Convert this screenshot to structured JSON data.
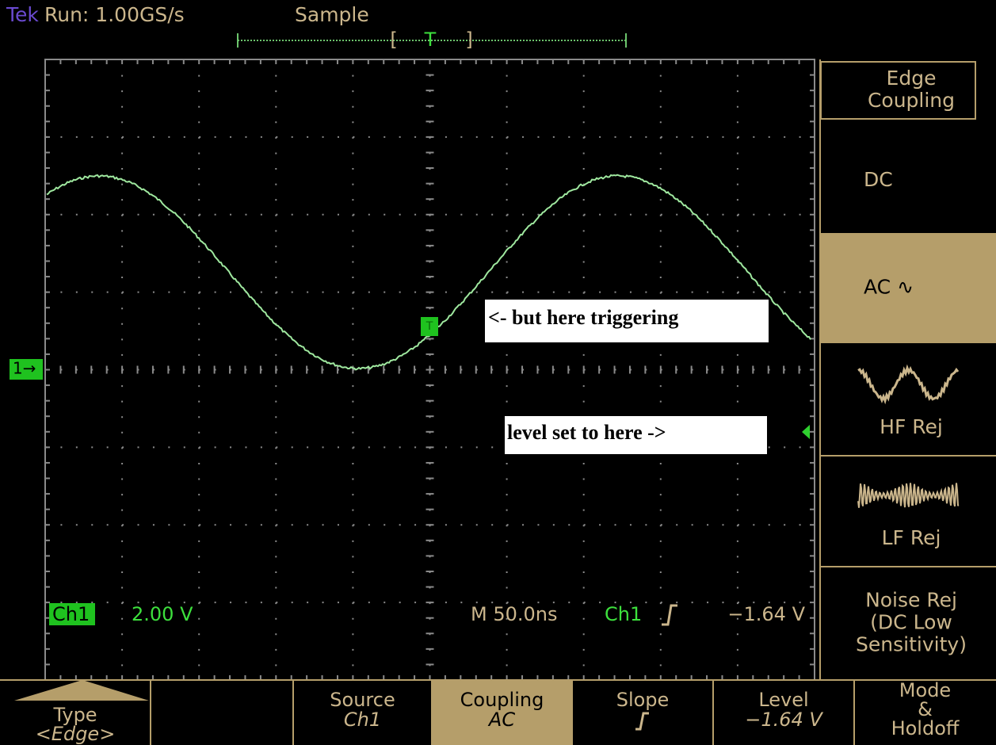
{
  "header": {
    "brand": "Tek",
    "status": "Run: 1.00GS/s",
    "acquisition": "Sample",
    "trigger_position": "T"
  },
  "side_menu": {
    "title": [
      "Edge",
      "Coupling"
    ],
    "options": [
      {
        "label": [
          "DC"
        ],
        "selected": false
      },
      {
        "label": [
          "AC ∿"
        ],
        "selected": true
      },
      {
        "label": [
          "HF Rej"
        ],
        "selected": false
      },
      {
        "label": [
          "LF Rej"
        ],
        "selected": false
      },
      {
        "label": [
          "Noise Rej",
          "(DC Low",
          "Sensitivity)"
        ],
        "selected": false
      }
    ]
  },
  "bottom_menu": [
    {
      "label": [
        "Type"
      ],
      "value": "<Edge>",
      "selected": false
    },
    {
      "label": [
        "Source"
      ],
      "value": "Ch1",
      "selected": false
    },
    {
      "label": [
        "Coupling"
      ],
      "value": "AC",
      "selected": true
    },
    {
      "label": [
        "Slope"
      ],
      "selected": false
    },
    {
      "label": [
        "Level"
      ],
      "value": "−1.64 V",
      "selected": false
    },
    {
      "label": [
        "Mode",
        "&",
        "Holdoff"
      ],
      "selected": false
    }
  ],
  "readouts": {
    "channel": "Ch1",
    "scale": "2.00 V",
    "timebase": "M 50.0ns",
    "trigger_source": "Ch1",
    "trigger_level": "−1.64 V"
  },
  "annotations": [
    "<- but here triggering",
    "level set to here ->"
  ],
  "markers": {
    "channel": "1→",
    "trigger": "T"
  }
}
